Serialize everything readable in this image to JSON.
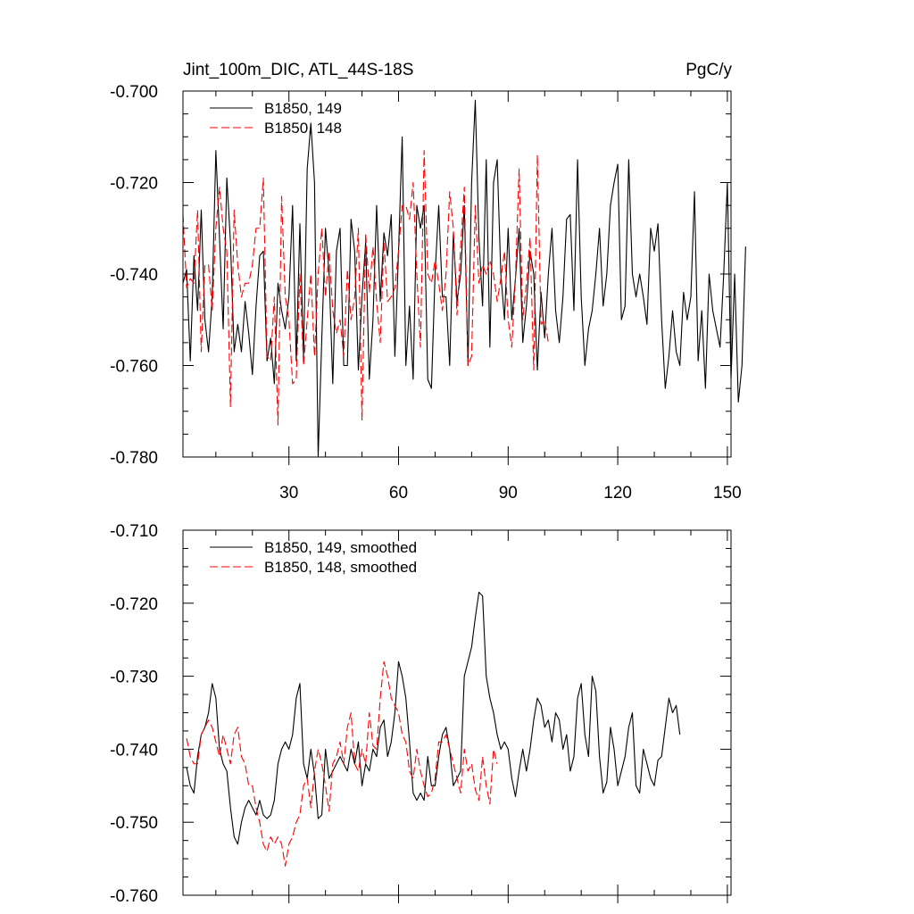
{
  "chart_data": [
    {
      "type": "line",
      "title_left": "Jint_100m_DIC, ATL_44S-18S",
      "title_right": "PgC/y",
      "xlim": [
        1,
        151
      ],
      "ylim": [
        -0.78,
        -0.7
      ],
      "xticks": [
        30,
        60,
        90,
        120,
        150
      ],
      "yticks": [
        -0.78,
        -0.76,
        -0.74,
        -0.72,
        -0.7
      ],
      "ytick_labels": [
        "-0.780",
        "-0.760",
        "-0.740",
        "-0.720",
        "-0.700"
      ],
      "show_xtick_labels": true,
      "grid": false,
      "legend_position": "top-left",
      "series": [
        {
          "name": "B1850, 149",
          "color": "#000000",
          "dash": "solid",
          "x_start": 1,
          "values": [
            -0.742,
            -0.739,
            -0.759,
            -0.736,
            -0.748,
            -0.726,
            -0.75,
            -0.757,
            -0.745,
            -0.713,
            -0.732,
            -0.752,
            -0.719,
            -0.733,
            -0.757,
            -0.751,
            -0.757,
            -0.746,
            -0.753,
            -0.762,
            -0.747,
            -0.736,
            -0.735,
            -0.759,
            -0.754,
            -0.764,
            -0.742,
            -0.748,
            -0.752,
            -0.745,
            -0.725,
            -0.759,
            -0.729,
            -0.758,
            -0.717,
            -0.707,
            -0.72,
            -0.78,
            -0.754,
            -0.73,
            -0.74,
            -0.764,
            -0.735,
            -0.73,
            -0.76,
            -0.76,
            -0.728,
            -0.735,
            -0.761,
            -0.745,
            -0.733,
            -0.763,
            -0.75,
            -0.725,
            -0.746,
            -0.731,
            -0.736,
            -0.727,
            -0.758,
            -0.735,
            -0.71,
            -0.76,
            -0.747,
            -0.763,
            -0.725,
            -0.73,
            -0.725,
            -0.763,
            -0.765,
            -0.74,
            -0.725,
            -0.745,
            -0.745,
            -0.76,
            -0.731,
            -0.746,
            -0.74,
            -0.725,
            -0.76,
            -0.72,
            -0.702,
            -0.732,
            -0.747,
            -0.715,
            -0.756,
            -0.72,
            -0.715,
            -0.74,
            -0.75,
            -0.73,
            -0.75,
            -0.741,
            -0.73,
            -0.755,
            -0.747,
            -0.735,
            -0.74,
            -0.761,
            -0.744,
            -0.754,
            -0.74,
            -0.73,
            -0.748,
            -0.755,
            -0.745,
            -0.728,
            -0.727,
            -0.748,
            -0.715,
            -0.745,
            -0.76,
            -0.752,
            -0.748,
            -0.74,
            -0.73,
            -0.747,
            -0.74,
            -0.725,
            -0.72,
            -0.716,
            -0.75,
            -0.747,
            -0.715,
            -0.74,
            -0.745,
            -0.74,
            -0.745,
            -0.751,
            -0.73,
            -0.735,
            -0.729,
            -0.75,
            -0.765,
            -0.758,
            -0.748,
            -0.757,
            -0.76,
            -0.744,
            -0.75,
            -0.745,
            -0.722,
            -0.759,
            -0.748,
            -0.765,
            -0.74,
            -0.748,
            -0.752,
            -0.756,
            -0.74,
            -0.72,
            -0.763,
            -0.74,
            -0.768,
            -0.76,
            -0.734
          ]
        },
        {
          "name": "B1850, 148",
          "color": "#ff0000",
          "dash": "dashed",
          "x_start": 1,
          "values": [
            -0.727,
            -0.743,
            -0.741,
            -0.742,
            -0.726,
            -0.757,
            -0.738,
            -0.738,
            -0.748,
            -0.73,
            -0.721,
            -0.73,
            -0.735,
            -0.769,
            -0.726,
            -0.738,
            -0.745,
            -0.742,
            -0.742,
            -0.738,
            -0.73,
            -0.73,
            -0.719,
            -0.758,
            -0.759,
            -0.745,
            -0.773,
            -0.723,
            -0.745,
            -0.75,
            -0.764,
            -0.763,
            -0.74,
            -0.76,
            -0.75,
            -0.74,
            -0.758,
            -0.74,
            -0.73,
            -0.745,
            -0.735,
            -0.748,
            -0.753,
            -0.75,
            -0.758,
            -0.739,
            -0.75,
            -0.745,
            -0.73,
            -0.772,
            -0.731,
            -0.744,
            -0.734,
            -0.746,
            -0.755,
            -0.733,
            -0.746,
            -0.745,
            -0.743,
            -0.735,
            -0.725,
            -0.725,
            -0.728,
            -0.72,
            -0.74,
            -0.756,
            -0.713,
            -0.74,
            -0.742,
            -0.737,
            -0.742,
            -0.748,
            -0.74,
            -0.722,
            -0.73,
            -0.749,
            -0.734,
            -0.721,
            -0.76,
            -0.758,
            -0.725,
            -0.742,
            -0.738,
            -0.74,
            -0.737,
            -0.74,
            -0.746,
            -0.741,
            -0.735,
            -0.75,
            -0.756,
            -0.741,
            -0.717,
            -0.75,
            -0.742,
            -0.732,
            -0.761,
            -0.714,
            -0.751,
            -0.75,
            -0.755
          ]
        }
      ]
    },
    {
      "type": "line",
      "xlim": [
        1,
        151
      ],
      "ylim": [
        -0.76,
        -0.71
      ],
      "xticks": [
        30,
        60,
        90,
        120,
        150
      ],
      "yticks": [
        -0.76,
        -0.75,
        -0.74,
        -0.73,
        -0.72,
        -0.71
      ],
      "ytick_labels": [
        "-0.760",
        "-0.750",
        "-0.740",
        "-0.730",
        "-0.720",
        "-0.710"
      ],
      "show_xtick_labels": false,
      "grid": false,
      "legend_position": "top-left",
      "series": [
        {
          "name": "B1850, 149, smoothed",
          "color": "#000000",
          "dash": "solid",
          "x_start": 2,
          "values": [
            -0.7425,
            -0.745,
            -0.746,
            -0.741,
            -0.738,
            -0.737,
            -0.735,
            -0.731,
            -0.733,
            -0.74,
            -0.742,
            -0.743,
            -0.748,
            -0.752,
            -0.753,
            -0.75,
            -0.748,
            -0.747,
            -0.748,
            -0.749,
            -0.747,
            -0.749,
            -0.7495,
            -0.749,
            -0.747,
            -0.742,
            -0.74,
            -0.739,
            -0.74,
            -0.738,
            -0.733,
            -0.731,
            -0.742,
            -0.744,
            -0.74,
            -0.7435,
            -0.7495,
            -0.749,
            -0.74,
            -0.744,
            -0.743,
            -0.742,
            -0.741,
            -0.742,
            -0.743,
            -0.74,
            -0.742,
            -0.739,
            -0.745,
            -0.742,
            -0.743,
            -0.74,
            -0.741,
            -0.737,
            -0.736,
            -0.741,
            -0.739,
            -0.735,
            -0.728,
            -0.73,
            -0.733,
            -0.739,
            -0.746,
            -0.747,
            -0.746,
            -0.747,
            -0.741,
            -0.745,
            -0.745,
            -0.741,
            -0.738,
            -0.737,
            -0.74,
            -0.745,
            -0.744,
            -0.743,
            -0.73,
            -0.728,
            -0.726,
            -0.722,
            -0.7185,
            -0.719,
            -0.73,
            -0.733,
            -0.735,
            -0.738,
            -0.74,
            -0.739,
            -0.74,
            -0.744,
            -0.7465,
            -0.743,
            -0.74,
            -0.743,
            -0.74,
            -0.736,
            -0.733,
            -0.734,
            -0.737,
            -0.736,
            -0.739,
            -0.735,
            -0.736,
            -0.74,
            -0.738,
            -0.743,
            -0.741,
            -0.733,
            -0.731,
            -0.738,
            -0.741,
            -0.73,
            -0.732,
            -0.741,
            -0.746,
            -0.7445,
            -0.737,
            -0.74,
            -0.745,
            -0.743,
            -0.741,
            -0.737,
            -0.735,
            -0.745,
            -0.746,
            -0.74,
            -0.742,
            -0.744,
            -0.745,
            -0.7415,
            -0.741,
            -0.737,
            -0.733,
            -0.735,
            -0.734,
            -0.738
          ]
        },
        {
          "name": "B1850, 148, smoothed",
          "color": "#ff0000",
          "dash": "dashed",
          "x_start": 2,
          "values": [
            -0.7385,
            -0.741,
            -0.742,
            -0.742,
            -0.738,
            -0.737,
            -0.736,
            -0.737,
            -0.739,
            -0.741,
            -0.738,
            -0.74,
            -0.742,
            -0.738,
            -0.737,
            -0.741,
            -0.742,
            -0.745,
            -0.745,
            -0.748,
            -0.75,
            -0.753,
            -0.754,
            -0.752,
            -0.753,
            -0.752,
            -0.753,
            -0.756,
            -0.753,
            -0.752,
            -0.75,
            -0.749,
            -0.745,
            -0.744,
            -0.748,
            -0.743,
            -0.74,
            -0.742,
            -0.745,
            -0.7485,
            -0.742,
            -0.741,
            -0.739,
            -0.742,
            -0.737,
            -0.735,
            -0.742,
            -0.743,
            -0.74,
            -0.742,
            -0.735,
            -0.7395,
            -0.74,
            -0.733,
            -0.728,
            -0.73,
            -0.733,
            -0.734,
            -0.735,
            -0.738,
            -0.739,
            -0.743,
            -0.744,
            -0.74,
            -0.743,
            -0.745,
            -0.7465,
            -0.746,
            -0.744,
            -0.739,
            -0.739,
            -0.738,
            -0.74,
            -0.742,
            -0.744,
            -0.746,
            -0.74,
            -0.743,
            -0.742,
            -0.7455,
            -0.747,
            -0.741,
            -0.745,
            -0.7475,
            -0.74,
            -0.742
          ]
        }
      ]
    }
  ]
}
